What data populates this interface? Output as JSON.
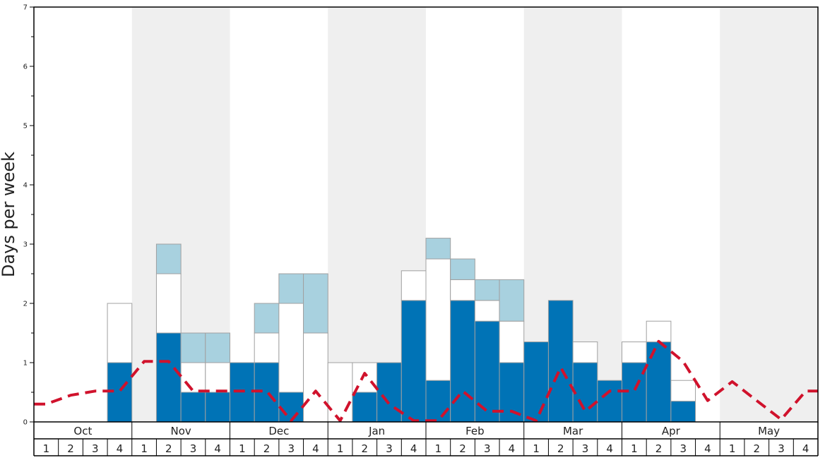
{
  "chart_data": {
    "type": "bar",
    "ylabel": "Days per week",
    "ylim": [
      0,
      7
    ],
    "yticks": [
      "0",
      "1",
      "2",
      "3",
      "4",
      "5",
      "6",
      "7"
    ],
    "months": [
      "Oct",
      "Nov",
      "Dec",
      "Jan",
      "Feb",
      "Mar",
      "Apr",
      "May"
    ],
    "weeks_per_month": [
      "1",
      "2",
      "3",
      "4"
    ],
    "stacked": true,
    "series": [
      {
        "color": "#0073b6",
        "values": [
          0,
          0,
          0,
          1,
          0,
          1.5,
          0.5,
          0.5,
          1,
          1,
          0.5,
          0,
          0,
          0.5,
          1,
          2.05,
          0.7,
          2.05,
          1.7,
          1,
          1.35,
          2.05,
          1,
          0.7,
          1,
          1.35,
          0.35,
          0,
          0,
          0,
          0,
          0
        ]
      },
      {
        "color": "#ffffff",
        "values": [
          0,
          0,
          0,
          1,
          0,
          1,
          0.5,
          0.5,
          0,
          0.5,
          1.5,
          1.5,
          1,
          0.5,
          0,
          0.5,
          2.05,
          0.35,
          0.35,
          0.7,
          0,
          0,
          0.35,
          0,
          0.35,
          0.35,
          0.35,
          0,
          0,
          0,
          0,
          0
        ]
      },
      {
        "color": "#a8d1df",
        "values": [
          0,
          0,
          0,
          0,
          0,
          0.5,
          0.5,
          0.5,
          0,
          0.5,
          0.5,
          1,
          0,
          0,
          0,
          0,
          0.35,
          0.35,
          0.35,
          0.7,
          0,
          0,
          0,
          0,
          0,
          0,
          0,
          0,
          0,
          0,
          0,
          0
        ]
      }
    ],
    "line": {
      "style": "dashed",
      "color": "#d0122c",
      "values": [
        0.3,
        0.45,
        0.52,
        0.52,
        1.02,
        1.02,
        0.52,
        0.52,
        0.52,
        0.52,
        0.02,
        0.52,
        0.02,
        0.82,
        0.3,
        0.02,
        0.02,
        0.52,
        0.18,
        0.18,
        0.02,
        0.92,
        0.18,
        0.52,
        0.52,
        1.36,
        1.02,
        0.36,
        0.68,
        0.36,
        0.04,
        0.52
      ]
    },
    "grid": false,
    "legend": "none"
  }
}
